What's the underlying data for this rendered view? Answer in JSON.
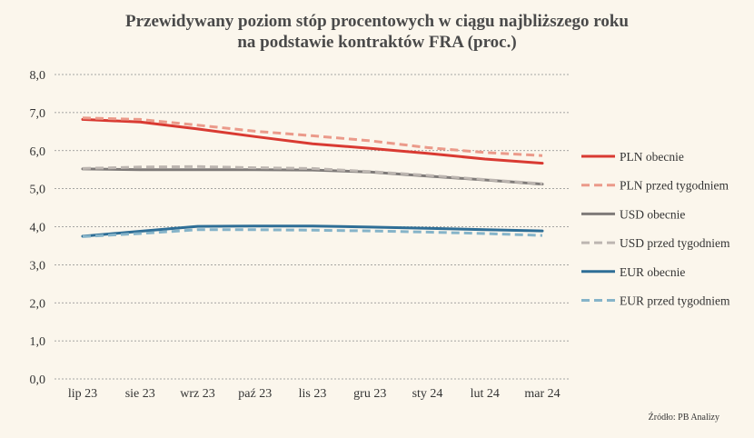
{
  "chart_data": {
    "type": "line",
    "title_line1": "Przewidywany poziom stóp procentowych w ciągu najbliższego roku",
    "title_line2": "na podstawie kontraktów FRA (proc.)",
    "source": "Źródło: PB Analizy",
    "categories": [
      "lip 23",
      "sie 23",
      "wrz 23",
      "paź 23",
      "lis 23",
      "gru 23",
      "sty 24",
      "lut 24",
      "mar 24"
    ],
    "ylim": [
      0,
      8
    ],
    "yticks": [
      "0,0",
      "1,0",
      "2,0",
      "3,0",
      "4,0",
      "5,0",
      "6,0",
      "7,0",
      "8,0"
    ],
    "grid": "horizontal dotted",
    "legend_position": "right",
    "series": [
      {
        "name": "PLN obecnie",
        "color": "#d93a32",
        "dash": false,
        "values": [
          6.82,
          6.75,
          6.57,
          6.37,
          6.18,
          6.06,
          5.93,
          5.78,
          5.67
        ]
      },
      {
        "name": "PLN przed tygodniem",
        "color": "#eb9a8a",
        "dash": true,
        "values": [
          6.86,
          6.82,
          6.67,
          6.51,
          6.39,
          6.26,
          6.08,
          5.95,
          5.87
        ]
      },
      {
        "name": "USD obecnie",
        "color": "#7f7b79",
        "dash": false,
        "values": [
          5.52,
          5.5,
          5.5,
          5.5,
          5.49,
          5.44,
          5.33,
          5.23,
          5.12
        ]
      },
      {
        "name": "USD przed tygodniem",
        "color": "#bdb6b1",
        "dash": true,
        "values": [
          5.53,
          5.57,
          5.58,
          5.55,
          5.53,
          5.45,
          5.35,
          5.24,
          5.13
        ]
      },
      {
        "name": "EUR obecnie",
        "color": "#2e6e96",
        "dash": false,
        "values": [
          3.75,
          3.88,
          4.01,
          4.02,
          4.02,
          3.99,
          3.96,
          3.92,
          3.89
        ]
      },
      {
        "name": "EUR przed tygodniem",
        "color": "#86b4c9",
        "dash": true,
        "values": [
          3.74,
          3.82,
          3.92,
          3.92,
          3.91,
          3.89,
          3.86,
          3.82,
          3.77
        ]
      }
    ]
  }
}
